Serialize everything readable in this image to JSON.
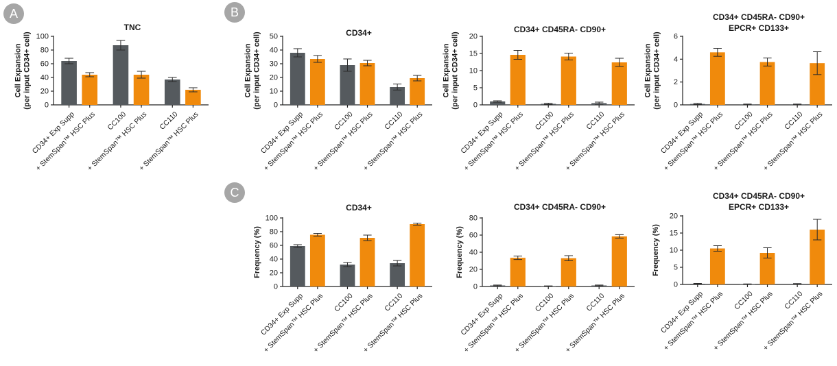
{
  "panels": {
    "a": "A",
    "b": "B",
    "c": "C"
  },
  "colors": {
    "supp": "#555a5e",
    "plus": "#f08a0c",
    "axis": "#222222",
    "badge": "#a6a6a6"
  },
  "chart_data": [
    {
      "id": "a-tnc",
      "panel": "A",
      "type": "bar",
      "title": [
        "TNC"
      ],
      "ylabel": [
        "Cell Expansion",
        "(per input CD34+ cell)"
      ],
      "ylim": [
        0,
        100
      ],
      "yticks": [
        0,
        20,
        40,
        60,
        80,
        100
      ],
      "categories": [
        "CD34+ Exp Supp",
        "+ StemSpan™ HSC Plus",
        "CC100",
        "+ StemSpan™ HSC Plus",
        "CC110",
        "+ StemSpan™ HSC Plus"
      ],
      "values": [
        64,
        44,
        87,
        44,
        37,
        22
      ],
      "errors": [
        4,
        3,
        7,
        5,
        3,
        3
      ],
      "colors": [
        "supp",
        "plus",
        "supp",
        "plus",
        "supp",
        "plus"
      ]
    },
    {
      "id": "b-cd34",
      "panel": "B",
      "type": "bar",
      "title": [
        "CD34+"
      ],
      "ylabel": [
        "Cell Expansion",
        "(per input CD34+ cell)"
      ],
      "ylim": [
        0,
        50
      ],
      "yticks": [
        0,
        10,
        20,
        30,
        40,
        50
      ],
      "categories": [
        "CD34+ Exp Supp",
        "+ StemSpan™ HSC Plus",
        "CC100",
        "+ StemSpan™ HSC Plus",
        "CC110",
        "+ StemSpan™ HSC Plus"
      ],
      "values": [
        38,
        33.5,
        29,
        30.5,
        13,
        19.5
      ],
      "errors": [
        3,
        2.5,
        4.5,
        2,
        2.2,
        2
      ],
      "colors": [
        "supp",
        "plus",
        "supp",
        "plus",
        "supp",
        "plus"
      ]
    },
    {
      "id": "b-cd90",
      "panel": "B",
      "type": "bar",
      "title": [
        "CD34+ CD45RA- CD90+"
      ],
      "ylabel": [
        "Cell Expansion",
        "(per input CD34+ cell)"
      ],
      "ylim": [
        0,
        20
      ],
      "yticks": [
        0,
        5,
        10,
        15,
        20
      ],
      "categories": [
        "CD34+ Exp Supp",
        "+ StemSpan™ HSC Plus",
        "CC100",
        "+ StemSpan™ HSC Plus",
        "CC110",
        "+ StemSpan™ HSC Plus"
      ],
      "values": [
        1.0,
        14.6,
        0.3,
        14.1,
        0.5,
        12.4
      ],
      "errors": [
        0.2,
        1.3,
        0.2,
        1.0,
        0.3,
        1.2
      ],
      "colors": [
        "supp",
        "plus",
        "supp",
        "plus",
        "supp",
        "plus"
      ]
    },
    {
      "id": "b-epcr",
      "panel": "B",
      "type": "bar",
      "title": [
        "CD34+ CD45RA- CD90+",
        "EPCR+ CD133+"
      ],
      "ylabel": [
        "Cell Expansion",
        "(per input CD34+ cell)"
      ],
      "ylim": [
        0,
        6
      ],
      "yticks": [
        0,
        2,
        4,
        6
      ],
      "categories": [
        "CD34+ Exp Supp",
        "+ StemSpan™ HSC Plus",
        "CC100",
        "+ StemSpan™ HSC Plus",
        "CC110",
        "+ StemSpan™ HSC Plus"
      ],
      "values": [
        0.08,
        4.6,
        0.04,
        3.75,
        0.04,
        3.65
      ],
      "errors": [
        0.05,
        0.35,
        0.03,
        0.35,
        0.03,
        1.0
      ],
      "colors": [
        "supp",
        "plus",
        "supp",
        "plus",
        "supp",
        "plus"
      ]
    },
    {
      "id": "c-cd34",
      "panel": "C",
      "type": "bar",
      "title": [
        "CD34+"
      ],
      "ylabel": [
        "Frequency (%)"
      ],
      "ylim": [
        0,
        100
      ],
      "yticks": [
        0,
        20,
        40,
        60,
        80,
        100
      ],
      "categories": [
        "CD34+ Exp Supp",
        "+ StemSpan™ HSC Plus",
        "CC100",
        "+ StemSpan™ HSC Plus",
        "CC110",
        "+ StemSpan™ HSC Plus"
      ],
      "values": [
        59,
        75.5,
        32,
        71,
        34,
        91
      ],
      "errors": [
        2,
        2,
        3,
        4,
        4,
        1.5
      ],
      "colors": [
        "supp",
        "plus",
        "supp",
        "plus",
        "supp",
        "plus"
      ]
    },
    {
      "id": "c-cd90",
      "panel": "C",
      "type": "bar",
      "title": [
        "CD34+ CD45RA- CD90+"
      ],
      "ylabel": [
        "Frequency (%)"
      ],
      "ylim": [
        0,
        80
      ],
      "yticks": [
        0,
        20,
        40,
        60,
        80
      ],
      "categories": [
        "CD34+ Exp Supp",
        "+ StemSpan™ HSC Plus",
        "CC100",
        "+ StemSpan™ HSC Plus",
        "CC110",
        "+ StemSpan™ HSC Plus"
      ],
      "values": [
        1.2,
        33.5,
        0.4,
        33,
        1.2,
        58.5
      ],
      "errors": [
        0.5,
        2,
        0.3,
        3,
        0.5,
        2
      ],
      "colors": [
        "supp",
        "plus",
        "supp",
        "plus",
        "supp",
        "plus"
      ]
    },
    {
      "id": "c-epcr",
      "panel": "C",
      "type": "bar",
      "title": [
        "CD34+ CD45RA- CD90+",
        "EPCR+ CD133+"
      ],
      "ylabel": [
        "Frequency (%)"
      ],
      "ylim": [
        0,
        20
      ],
      "yticks": [
        0,
        5,
        10,
        15,
        20
      ],
      "categories": [
        "CD34+ Exp Supp",
        "+ StemSpan™ HSC Plus",
        "CC100",
        "+ StemSpan™ HSC Plus",
        "CC110",
        "+ StemSpan™ HSC Plus"
      ],
      "values": [
        0.2,
        10.5,
        0.1,
        9.2,
        0.15,
        16
      ],
      "errors": [
        0.1,
        0.8,
        0.05,
        1.5,
        0.1,
        3
      ],
      "colors": [
        "supp",
        "plus",
        "supp",
        "plus",
        "supp",
        "plus"
      ]
    }
  ]
}
